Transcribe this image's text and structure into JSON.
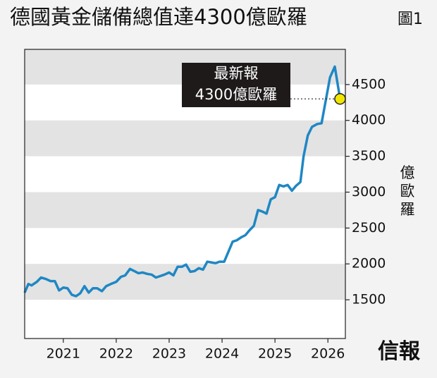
{
  "chart_data": {
    "type": "line",
    "title": "德國黃金儲備總值達4300億歐羅",
    "figure_label": "圖1",
    "y_label": "億歐羅",
    "annotation": [
      "最新報",
      "4300億歐羅"
    ],
    "source_logo": "信報",
    "x": [
      2020.27,
      2020.34,
      2020.4,
      2020.5,
      2020.58,
      2020.67,
      2020.76,
      2020.84,
      2020.92,
      2021.0,
      2021.08,
      2021.16,
      2021.24,
      2021.32,
      2021.4,
      2021.48,
      2021.56,
      2021.64,
      2021.73,
      2021.81,
      2021.9,
      2022.0,
      2022.09,
      2022.17,
      2022.26,
      2022.34,
      2022.42,
      2022.5,
      2022.59,
      2022.67,
      2022.75,
      2022.83,
      2022.91,
      2023.0,
      2023.08,
      2023.16,
      2023.24,
      2023.32,
      2023.4,
      2023.48,
      2023.56,
      2023.64,
      2023.72,
      2023.8,
      2023.88,
      2023.95,
      2024.04,
      2024.12,
      2024.2,
      2024.28,
      2024.36,
      2024.44,
      2024.52,
      2024.6,
      2024.68,
      2024.76,
      2024.84,
      2024.92,
      2025.0,
      2025.08,
      2025.16,
      2025.24,
      2025.32,
      2025.4,
      2025.48,
      2025.54,
      2025.62,
      2025.7,
      2025.8,
      2025.88,
      2026.04,
      2026.13,
      2026.23
    ],
    "series": [
      {
        "color": "#1f87c4",
        "values": [
          1600,
          1720,
          1700,
          1750,
          1810,
          1790,
          1760,
          1760,
          1630,
          1670,
          1660,
          1570,
          1550,
          1590,
          1690,
          1600,
          1660,
          1660,
          1620,
          1690,
          1720,
          1750,
          1820,
          1840,
          1930,
          1900,
          1870,
          1880,
          1860,
          1850,
          1810,
          1830,
          1850,
          1880,
          1840,
          1960,
          1960,
          1990,
          1890,
          1900,
          1940,
          1920,
          2030,
          2020,
          2010,
          2030,
          2030,
          2170,
          2310,
          2330,
          2370,
          2400,
          2470,
          2530,
          2750,
          2730,
          2700,
          2900,
          2930,
          3100,
          3080,
          3100,
          3020,
          3090,
          3140,
          3500,
          3790,
          3910,
          3950,
          3960,
          4600,
          4750,
          4300
        ]
      }
    ],
    "xlim": [
      2020.27,
      2026.33
    ],
    "xticks": [
      2021,
      2022,
      2023,
      2024,
      2025,
      2026
    ],
    "ylim": [
      960,
      4990
    ],
    "yticks": [
      1500,
      2000,
      2500,
      3000,
      3500,
      4000,
      4500
    ],
    "grid_bands": true,
    "highlight_color": "#f2e600",
    "logo_color": "#c8102e"
  }
}
